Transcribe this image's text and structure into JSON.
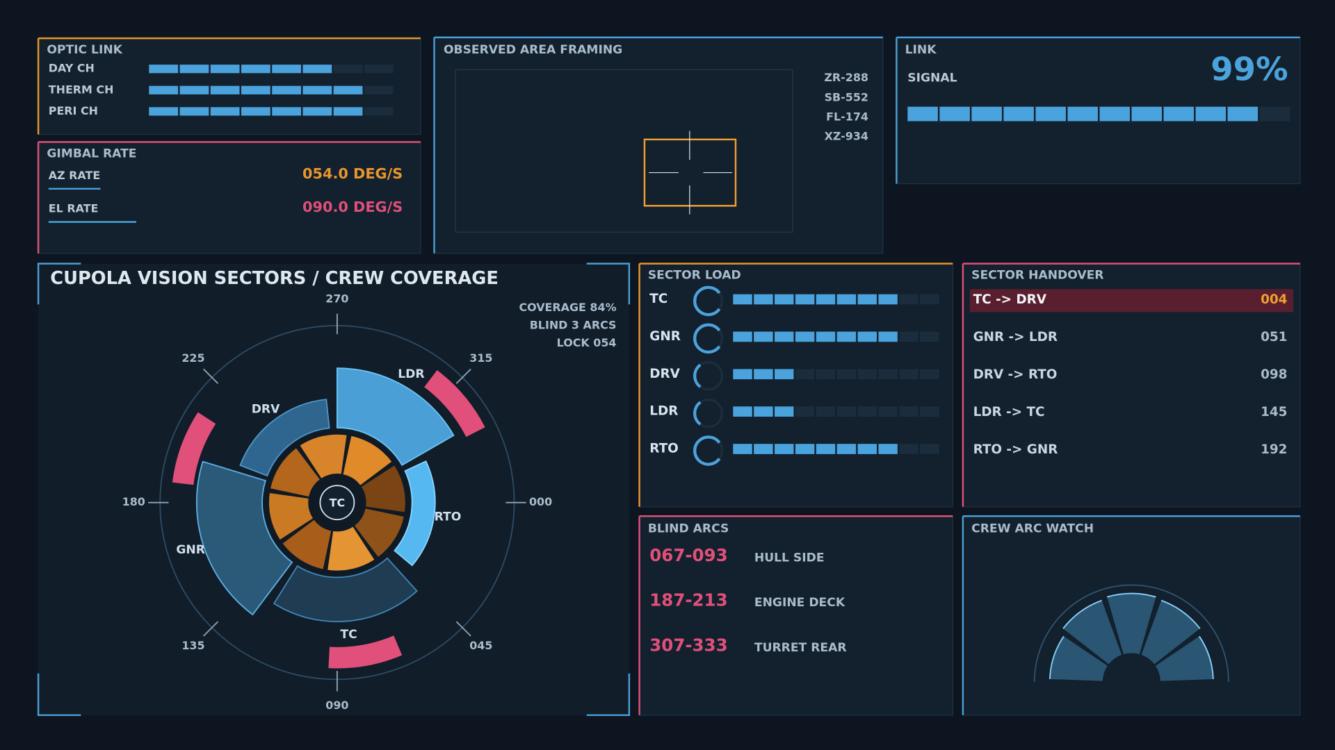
{
  "optic_link": {
    "title": "OPTIC LINK",
    "segments": 8,
    "channels": [
      {
        "label": "DAY CH",
        "level": 6
      },
      {
        "label": "THERM CH",
        "level": 7
      },
      {
        "label": "PERI CH",
        "level": 7
      }
    ]
  },
  "gimbal_rate": {
    "title": "GIMBAL RATE",
    "rows": [
      {
        "label": "AZ RATE",
        "value": "054.0 DEG/S"
      },
      {
        "label": "EL RATE",
        "value": "090.0 DEG/S"
      }
    ]
  },
  "observed_area": {
    "title": "OBSERVED AREA FRAMING",
    "codes": [
      "ZR-288",
      "SB-552",
      "FL-174",
      "XZ-934"
    ]
  },
  "link": {
    "title": "LINK",
    "label": "SIGNAL",
    "percent": "99%",
    "segments": 12,
    "level": 11
  },
  "cupola": {
    "title": "CUPOLA VISION SECTORS / CREW COVERAGE",
    "status": [
      "COVERAGE 84%",
      "BLIND 3 ARCS",
      "LOCK 054"
    ],
    "center_label": "TC",
    "bearings": [
      270,
      {
        "value": 315,
        "label": "315"
      },
      {
        "value": 0,
        "label": "000"
      },
      {
        "value": 45,
        "label": "045"
      },
      {
        "value": 90,
        "label": "090"
      },
      135,
      180,
      225
    ],
    "sectors": [
      {
        "name": "LDR",
        "start": 270,
        "end": 330
      },
      {
        "name": "RTO",
        "start": 335,
        "end": 40
      },
      {
        "name": "TC",
        "start": 48,
        "end": 122
      },
      {
        "name": "GNR",
        "start": 127,
        "end": 197
      },
      {
        "name": "DRV",
        "start": 201,
        "end": 264
      }
    ]
  },
  "sector_load": {
    "title": "SECTOR LOAD",
    "segments": 10,
    "rows": [
      {
        "label": "TC",
        "level": 8
      },
      {
        "label": "GNR",
        "level": 8
      },
      {
        "label": "DRV",
        "level": 3
      },
      {
        "label": "LDR",
        "level": 3
      },
      {
        "label": "RTO",
        "level": 8
      }
    ]
  },
  "sector_handover": {
    "title": "SECTOR HANDOVER",
    "rows": [
      {
        "pair": "TC -> DRV",
        "code": "004"
      },
      {
        "pair": "GNR -> LDR",
        "code": "051"
      },
      {
        "pair": "DRV -> RTO",
        "code": "098"
      },
      {
        "pair": "LDR -> TC",
        "code": "145"
      },
      {
        "pair": "RTO -> GNR",
        "code": "192"
      }
    ]
  },
  "blind_arcs": {
    "title": "BLIND ARCS",
    "rows": [
      {
        "range": "067-093",
        "start": 67,
        "end": 93,
        "label": "HULL SIDE"
      },
      {
        "range": "187-213",
        "start": 187,
        "end": 213,
        "label": "ENGINE DECK"
      },
      {
        "range": "307-333",
        "start": 307,
        "end": 333,
        "label": "TURRET REAR"
      }
    ]
  },
  "crew_arc_watch": {
    "title": "CREW ARC WATCH"
  }
}
